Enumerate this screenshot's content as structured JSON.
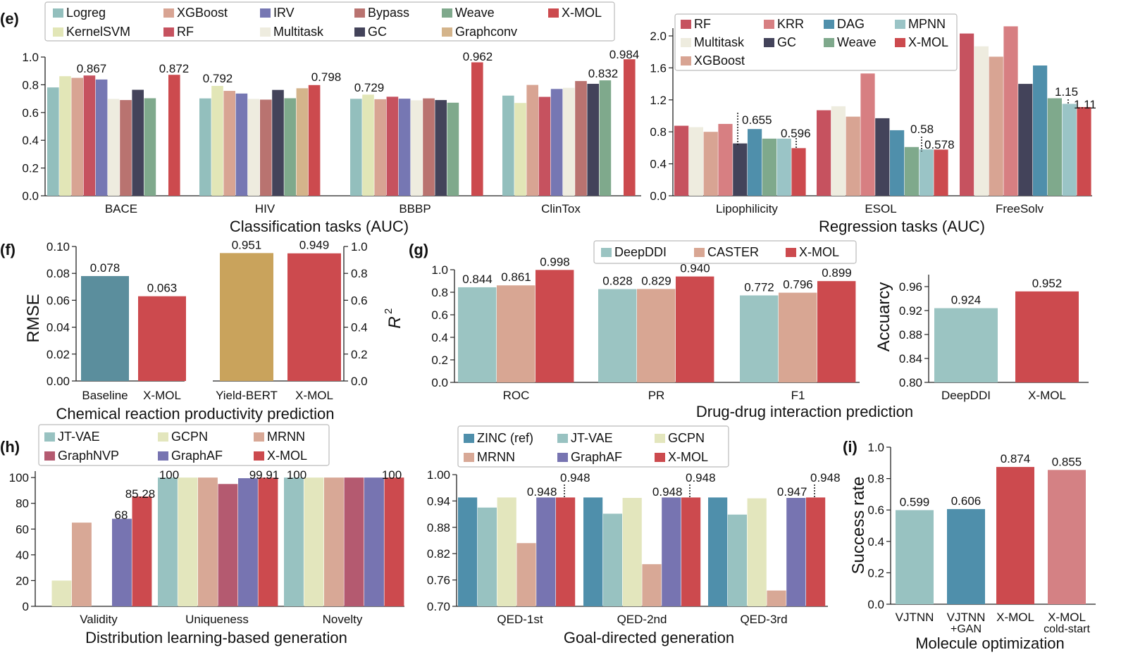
{
  "panels": {
    "e_title": "Classification tasks (AUC)",
    "e2_title": "Regression tasks (AUC)",
    "f_title": "Chemical reaction productivity prediction",
    "g_title": "Drug-drug interaction prediction",
    "h_title": "Distribution learning-based generation",
    "h2_title": "Goal-directed generation",
    "i_title": "Molecule optimization",
    "letters": {
      "e": "(e)",
      "f": "(f)",
      "g": "(g)",
      "h": "(h)",
      "i": "(i)"
    }
  },
  "colors": {
    "Logreg": "#93bfbd",
    "KernelSVM": "#e2e6b7",
    "XGBoost": "#d8a493",
    "RF": "#c6525f",
    "IRV": "#7677b3",
    "Multitask": "#eeecdf",
    "Bypass": "#b97370",
    "GC": "#43435a",
    "Weave": "#7fa98c",
    "Graphconv": "#d4b48b",
    "X-MOL": "#cc4a4e",
    "KRR": "#d77f82",
    "DAG": "#4f8fab",
    "MPNN": "#9ac4c6",
    "DeepDDI": "#9bc4c2",
    "CASTER": "#d8a693",
    "Baseline": "#5b8e9d",
    "Yield-BERT": "#c9a35c",
    "JT-VAE": "#98c2c1",
    "GCPN": "#e3e6bd",
    "MRNN": "#d8a896",
    "GraphNVP": "#b45a70",
    "GraphAF": "#7774b1",
    "ZINC (ref)": "#4f8fab",
    "VJTNN": "#98c2c1",
    "VJTNN+GAN": "#4f8fab",
    "X-MOL cold-start": "#d48184"
  },
  "chart_data": [
    {
      "id": "e_class",
      "type": "bar",
      "categories": [
        "BACE",
        "HIV",
        "BBBP",
        "ClinTox"
      ],
      "series_order": [
        "Logreg",
        "KernelSVM",
        "XGBoost",
        "RF",
        "IRV",
        "Multitask",
        "Bypass",
        "GC",
        "Weave",
        "X-MOL"
      ],
      "values": {
        "BACE": [
          0.781,
          0.862,
          0.85,
          0.867,
          0.838,
          0.698,
          0.69,
          0.764,
          0.703,
          0.872
        ],
        "HIV": [
          0.702,
          0.792,
          0.756,
          null,
          0.737,
          0.698,
          0.693,
          0.763,
          0.703,
          0.798
        ],
        "BBBP": [
          0.699,
          0.729,
          0.696,
          0.714,
          0.7,
          0.688,
          0.702,
          0.69,
          0.671,
          0.962
        ],
        "ClinTox": [
          0.722,
          0.669,
          0.799,
          0.713,
          0.77,
          0.778,
          0.827,
          0.807,
          0.832,
          0.984
        ]
      },
      "hiv_order": [
        "Logreg",
        "KernelSVM",
        "XGBoost",
        "IRV",
        "Multitask",
        "Bypass",
        "GC",
        "Weave",
        "Graphconv",
        "X-MOL"
      ],
      "hiv_values": [
        0.702,
        0.792,
        0.756,
        0.737,
        0.698,
        0.693,
        0.763,
        0.703,
        0.775,
        0.798
      ],
      "ylim": [
        0,
        1.0
      ],
      "yticks": [
        "0.0",
        "0.2",
        "0.4",
        "0.6",
        "0.8",
        "1.0"
      ],
      "labels": {
        "BACE": [
          "0.867",
          "0.872"
        ],
        "HIV": [
          "0.792",
          "0.798"
        ],
        "BBBP": [
          "0.729",
          "0.962"
        ],
        "ClinTox": [
          "0.832",
          "0.984"
        ]
      },
      "legend": [
        "Logreg",
        "XGBoost",
        "IRV",
        "Bypass",
        "Weave",
        "X-MOL",
        "KernelSVM",
        "RF",
        "Multitask",
        "GC",
        "Graphconv"
      ]
    },
    {
      "id": "e_reg",
      "type": "bar",
      "categories": [
        "Lipophilicity",
        "ESOL",
        "FreeSolv"
      ],
      "series_order": [
        "RF",
        "Multitask",
        "XGBoost",
        "KRR",
        "GC",
        "DAG",
        "Weave",
        "MPNN",
        "X-MOL"
      ],
      "values": {
        "Lipophilicity": [
          0.876,
          0.859,
          0.8,
          0.899,
          0.655,
          0.835,
          0.715,
          0.715,
          0.596
        ],
        "ESOL": [
          1.07,
          1.12,
          0.99,
          1.53,
          0.97,
          0.82,
          0.61,
          0.58,
          0.578
        ],
        "FreeSolv": [
          2.03,
          1.87,
          1.74,
          2.12,
          1.4,
          1.63,
          1.22,
          1.15,
          1.11
        ]
      },
      "ylim": [
        0,
        2.2
      ],
      "yticks": [
        "0.0",
        "0.4",
        "0.8",
        "1.2",
        "1.6",
        "2.0"
      ],
      "labels": [
        "0.655",
        "0.596",
        "0.58",
        "0.578",
        "1.15",
        "1.11"
      ],
      "legend": [
        "RF",
        "KRR",
        "DAG",
        "MPNN",
        "Multitask",
        "GC",
        "Weave",
        "X-MOL",
        "XGBoost"
      ]
    },
    {
      "id": "f_rmse",
      "type": "bar",
      "categories": [
        "Baseline",
        "X-MOL"
      ],
      "values": [
        0.078,
        0.063
      ],
      "labels": [
        "0.078",
        "0.063"
      ],
      "ylabel": "RMSE",
      "ylim": [
        0,
        0.1
      ],
      "yticks": [
        "0.00",
        "0.02",
        "0.04",
        "0.06",
        "0.08",
        "0.10"
      ]
    },
    {
      "id": "f_r2",
      "type": "bar",
      "categories": [
        "Yield-BERT",
        "X-MOL"
      ],
      "values": [
        0.951,
        0.949
      ],
      "labels": [
        "0.951",
        "0.949"
      ],
      "ylabel": "R",
      "ylabel_sup": "2",
      "ylim": [
        0,
        1.0
      ],
      "yticks": [
        "0.0",
        "0.2",
        "0.4",
        "0.6",
        "0.8",
        "1.0"
      ]
    },
    {
      "id": "g_ddi",
      "type": "bar",
      "categories": [
        "ROC",
        "PR",
        "F1"
      ],
      "series": [
        {
          "name": "DeepDDI",
          "values": [
            0.844,
            0.828,
            0.772
          ]
        },
        {
          "name": "CASTER",
          "values": [
            0.861,
            0.829,
            0.796
          ]
        },
        {
          "name": "X-MOL",
          "values": [
            0.998,
            0.94,
            0.899
          ]
        }
      ],
      "labels": [
        [
          "0.844",
          "0.861",
          "0.998"
        ],
        [
          "0.828",
          "0.829",
          "0.940"
        ],
        [
          "0.772",
          "0.796",
          "0.899"
        ]
      ],
      "ylim": [
        0,
        1.0
      ],
      "yticks": [
        "0.0",
        "0.2",
        "0.4",
        "0.6",
        "0.8",
        "1.0"
      ]
    },
    {
      "id": "g_acc",
      "type": "bar",
      "categories": [
        "DeepDDI",
        "X-MOL"
      ],
      "values": [
        0.924,
        0.952
      ],
      "labels": [
        "0.924",
        "0.952"
      ],
      "ylabel": "Accuarcy",
      "ylim": [
        0.8,
        0.98
      ],
      "yticks": [
        "0.80",
        "0.84",
        "0.88",
        "0.92",
        "0.96"
      ]
    },
    {
      "id": "h_dist",
      "type": "bar",
      "categories": [
        "Validity",
        "Uniqueness",
        "Novelty"
      ],
      "series_order": [
        "JT-VAE",
        "GCPN",
        "MRNN",
        "GraphNVP",
        "GraphAF",
        "X-MOL"
      ],
      "values": {
        "Validity": [
          null,
          20,
          65,
          null,
          68,
          85.28
        ],
        "Uniqueness": [
          100,
          100,
          100,
          95,
          99.5,
          99.91
        ],
        "Novelty": [
          100,
          100,
          100,
          100,
          100,
          100
        ]
      },
      "labels": [
        "68",
        "85.28",
        "100",
        "99.91",
        "100",
        "100"
      ],
      "ylim": [
        0,
        105
      ],
      "yticks": [
        "0",
        "20",
        "40",
        "60",
        "80",
        "100"
      ],
      "legend": [
        "JT-VAE",
        "GCPN",
        "MRNN",
        "GraphNVP",
        "GraphAF",
        "X-MOL"
      ]
    },
    {
      "id": "h_goal",
      "type": "bar",
      "categories": [
        "QED-1st",
        "QED-2nd",
        "QED-3rd"
      ],
      "series_order": [
        "ZINC (ref)",
        "JT-VAE",
        "GCPN",
        "MRNN",
        "GraphAF",
        "X-MOL"
      ],
      "values": {
        "QED-1st": [
          0.948,
          0.925,
          0.948,
          0.844,
          0.948,
          0.948
        ],
        "QED-2nd": [
          0.948,
          0.911,
          0.947,
          0.796,
          0.948,
          0.948
        ],
        "QED-3rd": [
          0.948,
          0.909,
          0.946,
          0.736,
          0.947,
          0.948
        ]
      },
      "labels": [
        [
          "0.948",
          "0.948"
        ],
        [
          "0.948",
          "0.948"
        ],
        [
          "0.947",
          "0.948"
        ]
      ],
      "ylim": [
        0.7,
        1.0
      ],
      "yticks": [
        "0.70",
        "0.76",
        "0.82",
        "0.88",
        "0.94",
        "1.00"
      ],
      "legend": [
        "ZINC (ref)",
        "JT-VAE",
        "GCPN",
        "MRNN",
        "GraphAF",
        "X-MOL"
      ]
    },
    {
      "id": "i_opt",
      "type": "bar",
      "categories": [
        "VJTNN",
        "VJTNN+GAN",
        "X-MOL",
        "X-MOL cold-start"
      ],
      "category_lines": [
        [
          "VJTNN"
        ],
        [
          "VJTNN",
          "+GAN"
        ],
        [
          "X-MOL"
        ],
        [
          "X-MOL",
          "cold-start"
        ]
      ],
      "values": [
        0.599,
        0.606,
        0.874,
        0.855
      ],
      "labels": [
        "0.599",
        "0.606",
        "0.874",
        "0.855"
      ],
      "ylabel": "Success rate",
      "ylim": [
        0,
        1.0
      ],
      "yticks": [
        "0.0",
        "0.2",
        "0.4",
        "0.6",
        "0.8",
        "1.0"
      ]
    }
  ]
}
